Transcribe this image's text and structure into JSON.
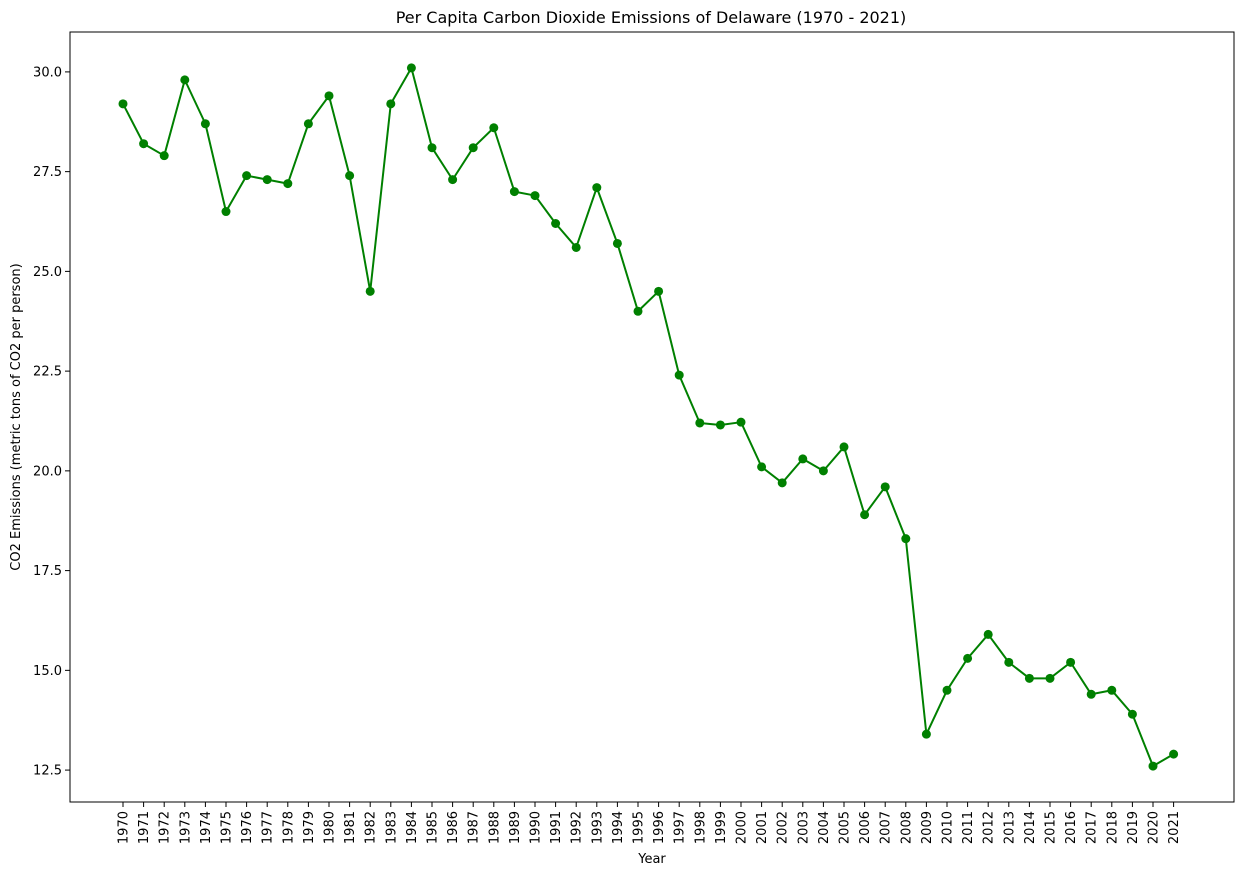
{
  "chart_data": {
    "type": "line",
    "title": "Per Capita Carbon Dioxide Emissions of Delaware (1970 - 2021)",
    "xlabel": "Year",
    "ylabel": "CO2 Emissions (metric tons of CO2 per person)",
    "categories": [
      "1970",
      "1971",
      "1972",
      "1973",
      "1974",
      "1975",
      "1976",
      "1977",
      "1978",
      "1979",
      "1980",
      "1981",
      "1982",
      "1983",
      "1984",
      "1985",
      "1986",
      "1987",
      "1988",
      "1989",
      "1990",
      "1991",
      "1992",
      "1993",
      "1994",
      "1995",
      "1996",
      "1997",
      "1998",
      "1999",
      "2000",
      "2001",
      "2002",
      "2003",
      "2004",
      "2005",
      "2006",
      "2007",
      "2008",
      "2009",
      "2010",
      "2011",
      "2012",
      "2013",
      "2014",
      "2015",
      "2016",
      "2017",
      "2018",
      "2019",
      "2020",
      "2021"
    ],
    "values": [
      29.2,
      28.2,
      27.9,
      29.8,
      28.7,
      26.5,
      27.4,
      27.3,
      27.2,
      28.7,
      29.4,
      27.4,
      24.5,
      29.2,
      30.1,
      28.1,
      27.3,
      28.1,
      28.6,
      27.0,
      26.9,
      26.2,
      25.6,
      27.1,
      25.7,
      24.0,
      24.5,
      22.4,
      21.2,
      21.15,
      21.22,
      20.1,
      19.7,
      20.3,
      20.0,
      20.6,
      18.9,
      19.6,
      18.3,
      13.4,
      14.5,
      15.3,
      15.9,
      15.2,
      14.8,
      14.8,
      15.2,
      14.4,
      14.5,
      13.9,
      12.6,
      12.9
    ],
    "yticks": [
      12.5,
      15.0,
      17.5,
      20.0,
      22.5,
      25.0,
      27.5,
      30.0
    ],
    "ytick_labels": [
      "12.5",
      "15.0",
      "17.5",
      "20.0",
      "22.5",
      "25.0",
      "27.5",
      "30.0"
    ],
    "ylim": [
      11.7,
      31.0
    ],
    "line_color": "#008000",
    "marker": "circle",
    "grid": false,
    "legend": false
  }
}
